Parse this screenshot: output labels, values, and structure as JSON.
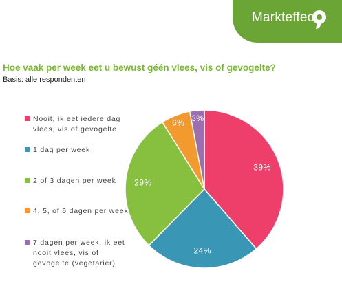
{
  "brand": {
    "name": "Markteffect",
    "color": "#6aa535"
  },
  "title": {
    "question": "Hoe vaak per week eet u bewust géén vlees, vis of gevogelte?",
    "basis": "Basis: alle respondenten"
  },
  "chart_data": {
    "type": "pie",
    "title": "Hoe vaak per week eet u bewust géén vlees, vis of gevogelte?",
    "subtitle": "Basis: alle respondenten",
    "legend_placement": "left",
    "start_angle": "12 o'clock",
    "direction": "clockwise",
    "series": [
      {
        "name": "Nooit, ik eet iedere dag vlees, vis of gevogelte",
        "value": 39,
        "label": "39%",
        "color": "#ee3f6b"
      },
      {
        "name": "1 dag per week",
        "value": 24,
        "label": "24%",
        "color": "#3a96b5"
      },
      {
        "name": "2 of 3 dagen per week",
        "value": 29,
        "label": "29%",
        "color": "#87bf3e"
      },
      {
        "name": "4, 5, of 6 dagen per week",
        "value": 6,
        "label": "6%",
        "color": "#f39a2e"
      },
      {
        "name": "7 dagen per week, ik eet nooit vlees, vis of gevogelte (vegetariër)",
        "value": 3,
        "label": "3%",
        "color": "#9b6fb0"
      }
    ]
  }
}
